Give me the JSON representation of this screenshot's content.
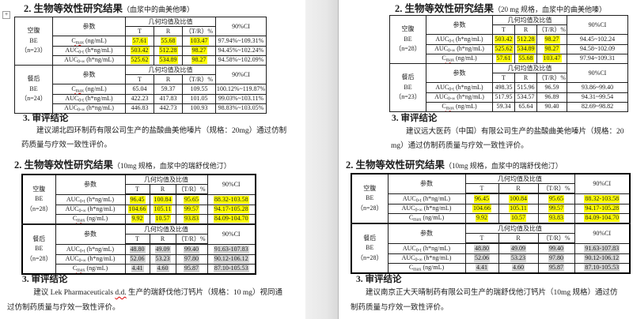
{
  "icons": {
    "table_move_handle": "+"
  },
  "colors": {
    "highlight_yellow": "#ffff00",
    "highlight_gray": "#d5d5d5",
    "spellcheck_red": "#dd0000",
    "gutter_gray": "#e7e7e7"
  },
  "panels": [
    {
      "id": "tl",
      "heading2": "2. 生物等效性研究结果",
      "heading2_note": "（血浆中的曲美他嗪）",
      "heading3": "3. 审评结论",
      "conclusion_parts": [
        {
          "text": "建议湖北四环制药有限公司生产的盐酸曲美他嗪片（规格：20mg）通过仿制药质量与疗效一致性评价。"
        }
      ],
      "table": {
        "col_headers": {
          "param": "参数",
          "geo_mean": "几何均值及比值",
          "t": "T",
          "r": "R",
          "tr_ratio": "（T/R）%",
          "ci": "90%CI"
        },
        "groups": [
          {
            "label_lines": [
              "空腹",
              "BE",
              "（n=23）"
            ],
            "rows": [
              {
                "param": {
                  "base": "C",
                  "sub": "max",
                  "unit": "(ng/mL)",
                  "misspell": true
                },
                "t": "57.61",
                "r": "55.68",
                "ratio": "103.47",
                "ci": "97.94%~109.31%",
                "hl": "yellow",
                "hl_ci": false
              },
              {
                "param": {
                  "base": "AUC",
                  "sub": "0-t",
                  "unit": "(h*ng/mL)"
                },
                "t": "503.42",
                "r": "512.28",
                "ratio": "98.27",
                "ci": "94.45%~102.24%",
                "hl": "yellow",
                "hl_ci": false
              },
              {
                "param": {
                  "base": "AUC",
                  "sub": "0-∞",
                  "unit": "(h*ng/mL)"
                },
                "t": "525.62",
                "r": "534.89",
                "ratio": "98.27",
                "ci": "94.58%~102.09%",
                "hl": "yellow",
                "hl_ci": false
              }
            ]
          },
          {
            "label_lines": [
              "餐后",
              "BE",
              "（n=24）"
            ],
            "rows": [
              {
                "param": {
                  "base": "C",
                  "sub": "max",
                  "unit": "(ng/mL)",
                  "misspell": true
                },
                "t": "65.04",
                "r": "59.37",
                "ratio": "109.55",
                "ci": "100.12%~119.87%"
              },
              {
                "param": {
                  "base": "AUC",
                  "sub": "0-t",
                  "unit": "(h*ng/mL)"
                },
                "t": "422.23",
                "r": "417.83",
                "ratio": "101.05",
                "ci": "99.03%~103.11%"
              },
              {
                "param": {
                  "base": "AUC",
                  "sub": "0-∞",
                  "unit": "(h*ng/mL)"
                },
                "t": "446.83",
                "r": "442.73",
                "ratio": "100.93",
                "ci": "98.83%~103.05%"
              }
            ]
          }
        ]
      }
    },
    {
      "id": "tr",
      "heading2": "2. 生物等效性研究结果",
      "heading2_note": "（20 mg 规格，血浆中的曲美他嗪）",
      "heading3": "3. 审评结论",
      "conclusion_parts": [
        {
          "text": "建议远大医药（中国）有限公司生产的盐酸曲美他嗪片（规格：20 mg）通过仿制药质量与疗效一致性评价。"
        }
      ],
      "table": {
        "col_headers": {
          "param": "参数",
          "geo_mean": "几何均值及比值",
          "t": "T",
          "r": "R",
          "tr_ratio": "（T/R）%",
          "ci": "90%CI"
        },
        "groups": [
          {
            "label_lines": [
              "空腹",
              "BE",
              "（n=28）"
            ],
            "rows": [
              {
                "param": {
                  "base": "AUC",
                  "sub": "0-t",
                  "unit": "(h*ng/mL)"
                },
                "t": "503.42",
                "r": "512.28",
                "ratio": "98.27",
                "ci": "94.45~102.24",
                "hl": "yellow",
                "hl_ci": false
              },
              {
                "param": {
                  "base": "AUC",
                  "sub": "0-∞",
                  "unit": "(h*ng/mL)"
                },
                "t": "525.62",
                "r": "534.89",
                "ratio": "98.27",
                "ci": "94.58~102.09",
                "hl": "yellow",
                "hl_ci": false
              },
              {
                "param": {
                  "base": "C",
                  "sub": "max",
                  "unit": "(ng/mL)",
                  "misspell": true
                },
                "t": "57.61",
                "r": "55.68",
                "ratio": "103.47",
                "ci": "97.94~109.31",
                "hl": "yellow",
                "hl_ci": false
              }
            ]
          },
          {
            "label_lines": [
              "餐后",
              "BE",
              "（n=23）"
            ],
            "rows": [
              {
                "param": {
                  "base": "AUC",
                  "sub": "0-t",
                  "unit": "(h*ng/mL)"
                },
                "t": "498.35",
                "r": "515.96",
                "ratio": "96.59",
                "ci": "93.86~99.40"
              },
              {
                "param": {
                  "base": "AUC",
                  "sub": "0-∞",
                  "unit": "(h*ng/mL)"
                },
                "t": "517.95",
                "r": "534.57",
                "ratio": "96.89",
                "ci": "94.31~99.54"
              },
              {
                "param": {
                  "base": "C",
                  "sub": "max",
                  "unit": "(ng/mL)",
                  "misspell": true
                },
                "t": "59.34",
                "r": "65.64",
                "ratio": "90.40",
                "ci": "82.69~98.82"
              }
            ]
          }
        ]
      }
    },
    {
      "id": "bl",
      "heading2": "2. 生物等效性研究结果",
      "heading2_note": "（10mg 规格，血浆中的瑞舒伐他汀）",
      "heading3": "3. 审评结论",
      "conclusion_parts": [
        {
          "text": "建议 Lek Pharmaceuticals "
        },
        {
          "text": "d.d.",
          "misspell": true
        },
        {
          "text": " 生产的瑞舒伐他汀钙片（规格：10 mg）视同通过仿制药质量与疗效一致性评价。"
        }
      ],
      "table": {
        "col_headers": {
          "param": "参数",
          "geo_mean": "几何均值及比值",
          "t": "T",
          "r": "R",
          "tr_ratio": "（T/R）%",
          "ci": "90%CI"
        },
        "groups": [
          {
            "label_lines": [
              "空腹",
              "BE",
              "（n=28）"
            ],
            "rows": [
              {
                "param": {
                  "base": "AUC",
                  "sub": "0-t",
                  "unit": "(h*ng/mL)"
                },
                "t": "96.45",
                "r": "100.84",
                "ratio": "95.65",
                "ci": "88.32-103.58",
                "hl": "yellow",
                "hl_ci": true
              },
              {
                "param": {
                  "base": "AUC",
                  "sub": "0-∞",
                  "unit": "(h*ng/mL)"
                },
                "t": "104.66",
                "r": "105.11",
                "ratio": "99.57",
                "ci": "94.17-105.28",
                "hl": "yellow",
                "hl_ci": true
              },
              {
                "param": {
                  "base": "C",
                  "sub": "max",
                  "unit": "(ng/mL)",
                  "misspell": true
                },
                "t": "9.92",
                "r": "10.57",
                "ratio": "93.83",
                "ci": "84.09-104.70",
                "hl": "yellow",
                "hl_ci": true
              }
            ]
          },
          {
            "label_lines": [
              "餐后",
              "BE",
              "（n=28）"
            ],
            "rows": [
              {
                "param": {
                  "base": "AUC",
                  "sub": "0-t",
                  "unit": "(h*ng/mL)"
                },
                "t": "48.80",
                "r": "49.09",
                "ratio": "99.40",
                "ci": "91.63-107.83",
                "hl": "gray",
                "hl_ci": true
              },
              {
                "param": {
                  "base": "AUC",
                  "sub": "0-∞",
                  "unit": "(h*ng/mL)"
                },
                "t": "52.06",
                "r": "53.23",
                "ratio": "97.80",
                "ci": "90.12-106.12",
                "hl": "gray",
                "hl_ci": true
              },
              {
                "param": {
                  "base": "C",
                  "sub": "max",
                  "unit": "(ng/mL)",
                  "misspell": true
                },
                "t": "4.41",
                "r": "4.60",
                "ratio": "95.87",
                "ci": "87.10-105.53",
                "hl": "gray",
                "hl_ci": true
              }
            ]
          }
        ]
      }
    },
    {
      "id": "br",
      "heading2": "2. 生物等效性研究结果",
      "heading2_note": "（10mg 规格，血浆中的瑞舒伐他汀）",
      "heading3": "3. 审评结论",
      "conclusion_parts": [
        {
          "text": "建议南京正大天晴制药有限公司生产的瑞舒伐他汀钙片（10mg 规格）通过仿制药质量与疗效一致性评价。"
        }
      ],
      "table": {
        "col_headers": {
          "param": "参数",
          "geo_mean": "几何均值及比值",
          "t": "T",
          "r": "R",
          "tr_ratio": "（T/R）%",
          "ci": "90%CI"
        },
        "groups": [
          {
            "label_lines": [
              "空腹",
              "BE",
              "（n=28）"
            ],
            "rows": [
              {
                "param": {
                  "base": "AUC",
                  "sub": "0-t",
                  "unit": "(h*ng/mL)"
                },
                "t": "96.45",
                "r": "100.84",
                "ratio": "95.65",
                "ci": "88.32-103.58",
                "hl": "yellow",
                "hl_ci": true
              },
              {
                "param": {
                  "base": "AUC",
                  "sub": "0-∞",
                  "unit": "(h*ng/mL)"
                },
                "t": "104.66",
                "r": "105.11",
                "ratio": "99.57",
                "ci": "94.17-105.28",
                "hl": "yellow",
                "hl_ci": true
              },
              {
                "param": {
                  "base": "C",
                  "sub": "max",
                  "unit": "(ng/mL)"
                },
                "t": "9.92",
                "r": "10.57",
                "ratio": "93.83",
                "ci": "84.09-104.70",
                "hl": "yellow",
                "hl_ci": true
              }
            ]
          },
          {
            "label_lines": [
              "餐后",
              "BE",
              "（n=28）"
            ],
            "rows": [
              {
                "param": {
                  "base": "AUC",
                  "sub": "0-t",
                  "unit": "(h*ng/mL)"
                },
                "t": "48.80",
                "r": "49.09",
                "ratio": "99.40",
                "ci": "91.63-107.83",
                "hl": "gray",
                "hl_ci": true
              },
              {
                "param": {
                  "base": "AUC",
                  "sub": "0-∞",
                  "unit": "(h*ng/mL)"
                },
                "t": "52.06",
                "r": "53.23",
                "ratio": "97.80",
                "ci": "90.12-106.12",
                "hl": "gray",
                "hl_ci": true
              },
              {
                "param": {
                  "base": "C",
                  "sub": "max",
                  "unit": "(ng/mL)"
                },
                "t": "4.41",
                "r": "4.60",
                "ratio": "95.87",
                "ci": "87.10-105.53",
                "hl": "gray",
                "hl_ci": true
              }
            ]
          }
        ]
      }
    }
  ]
}
